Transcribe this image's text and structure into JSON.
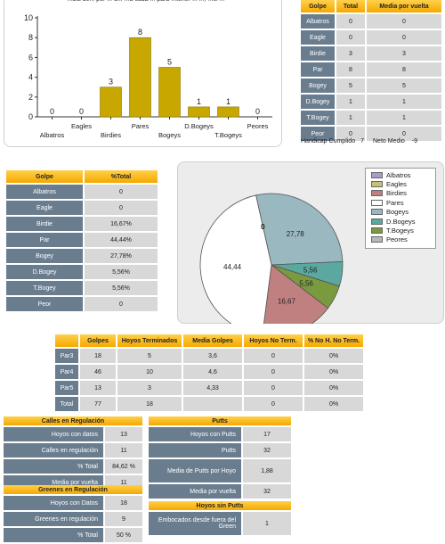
{
  "bar_chart": {
    "chart_data": {
      "type": "bar",
      "title": "...bla de... por ... d... ...a cada ... para ...tener ... ..., ...ol ...",
      "categories": [
        "Albatros",
        "Eagles",
        "Birdies",
        "Pares",
        "Bogeys",
        "D.Bogeys",
        "T.Bogeys",
        "Peores"
      ],
      "values": [
        0,
        0,
        3,
        8,
        5,
        1,
        1,
        0
      ],
      "ylim": [
        0,
        10
      ],
      "yticks": [
        "0",
        "2",
        "4",
        "6",
        "8",
        "10"
      ],
      "bar_color": "#c8a800"
    }
  },
  "summary_table": {
    "headers": [
      "Golpe",
      "Total",
      "Media por vuelta"
    ],
    "rows": [
      [
        "Albatros",
        "0",
        "0"
      ],
      [
        "Eagle",
        "0",
        "0"
      ],
      [
        "Birdie",
        "3",
        "3"
      ],
      [
        "Par",
        "8",
        "8"
      ],
      [
        "Bogey",
        "5",
        "5"
      ],
      [
        "D.Bogey",
        "1",
        "1"
      ],
      [
        "T.Bogey",
        "1",
        "1"
      ],
      [
        "Peor",
        "0",
        "0"
      ]
    ],
    "footer": {
      "handicap_label": "Handicap Cumplido",
      "handicap_value": "7",
      "neto_label": "Neto Medio",
      "neto_value": "-9"
    }
  },
  "percent_table": {
    "headers": [
      "Golpe",
      "%Total"
    ],
    "rows": [
      [
        "Albatros",
        "0"
      ],
      [
        "Eagle",
        "0"
      ],
      [
        "Birdie",
        "16,67%"
      ],
      [
        "Par",
        "44,44%"
      ],
      [
        "Bogey",
        "27,78%"
      ],
      [
        "D.Bogey",
        "5,56%"
      ],
      [
        "T.Bogey",
        "5,56%"
      ],
      [
        "Peor",
        "0"
      ]
    ]
  },
  "pie_chart": {
    "chart_data": {
      "type": "pie",
      "labels": [
        "Albatros",
        "Eagles",
        "Birdies",
        "Pares",
        "Bogeys",
        "D.Bogeys",
        "T.Bogeys",
        "Peores"
      ],
      "values": [
        0,
        0,
        16.67,
        44.44,
        27.78,
        5.56,
        5.56,
        0
      ],
      "value_labels": [
        "0",
        "0",
        "16,67",
        "44,44",
        "27,78",
        "5,56",
        "5,56",
        "0"
      ],
      "colors": [
        "#a89cc8",
        "#c8c07a",
        "#c08080",
        "#ffffff",
        "#9ab8c0",
        "#5aa8a0",
        "#7a9a40",
        "#b8b8b8"
      ],
      "legend_position": "right"
    }
  },
  "par_table": {
    "headers": [
      "",
      "Golpes",
      "Hoyos Terminados",
      "Media Golpes",
      "Hoyos No Term.",
      "% No H. No Term."
    ],
    "rows": [
      [
        "Par3",
        "18",
        "5",
        "3,6",
        "0",
        "0%"
      ],
      [
        "Par4",
        "46",
        "10",
        "4,6",
        "0",
        "0%"
      ],
      [
        "Par5",
        "13",
        "3",
        "4,33",
        "0",
        "0%"
      ],
      [
        "Total",
        "77",
        "18",
        "",
        "0",
        "0%"
      ]
    ]
  },
  "calles": {
    "title": "Calles en Regulación",
    "rows": [
      [
        "Hoyos con datos",
        "13"
      ],
      [
        "Calles en regulación",
        "11"
      ],
      [
        "% Total",
        "84,62 %"
      ],
      [
        "Media por vuelta",
        "11"
      ]
    ]
  },
  "greenes": {
    "title": "Greenes en Regulación",
    "rows": [
      [
        "Hoyos con Datos",
        "18"
      ],
      [
        "Greenes en regulación",
        "9"
      ],
      [
        "% Total",
        "50 %"
      ]
    ]
  },
  "putts": {
    "title": "Putts",
    "rows": [
      [
        "Hoyos con Putts",
        "17"
      ],
      [
        "Putts",
        "32"
      ],
      [
        "Media de Putts por Hoyo",
        "1,88"
      ],
      [
        "Media por vuelta",
        "32"
      ]
    ]
  },
  "hoyos_sin_putts": {
    "title": "Hoyos sin Putts",
    "rows": [
      [
        "Embocados desde fuera del Green",
        "1"
      ]
    ]
  }
}
